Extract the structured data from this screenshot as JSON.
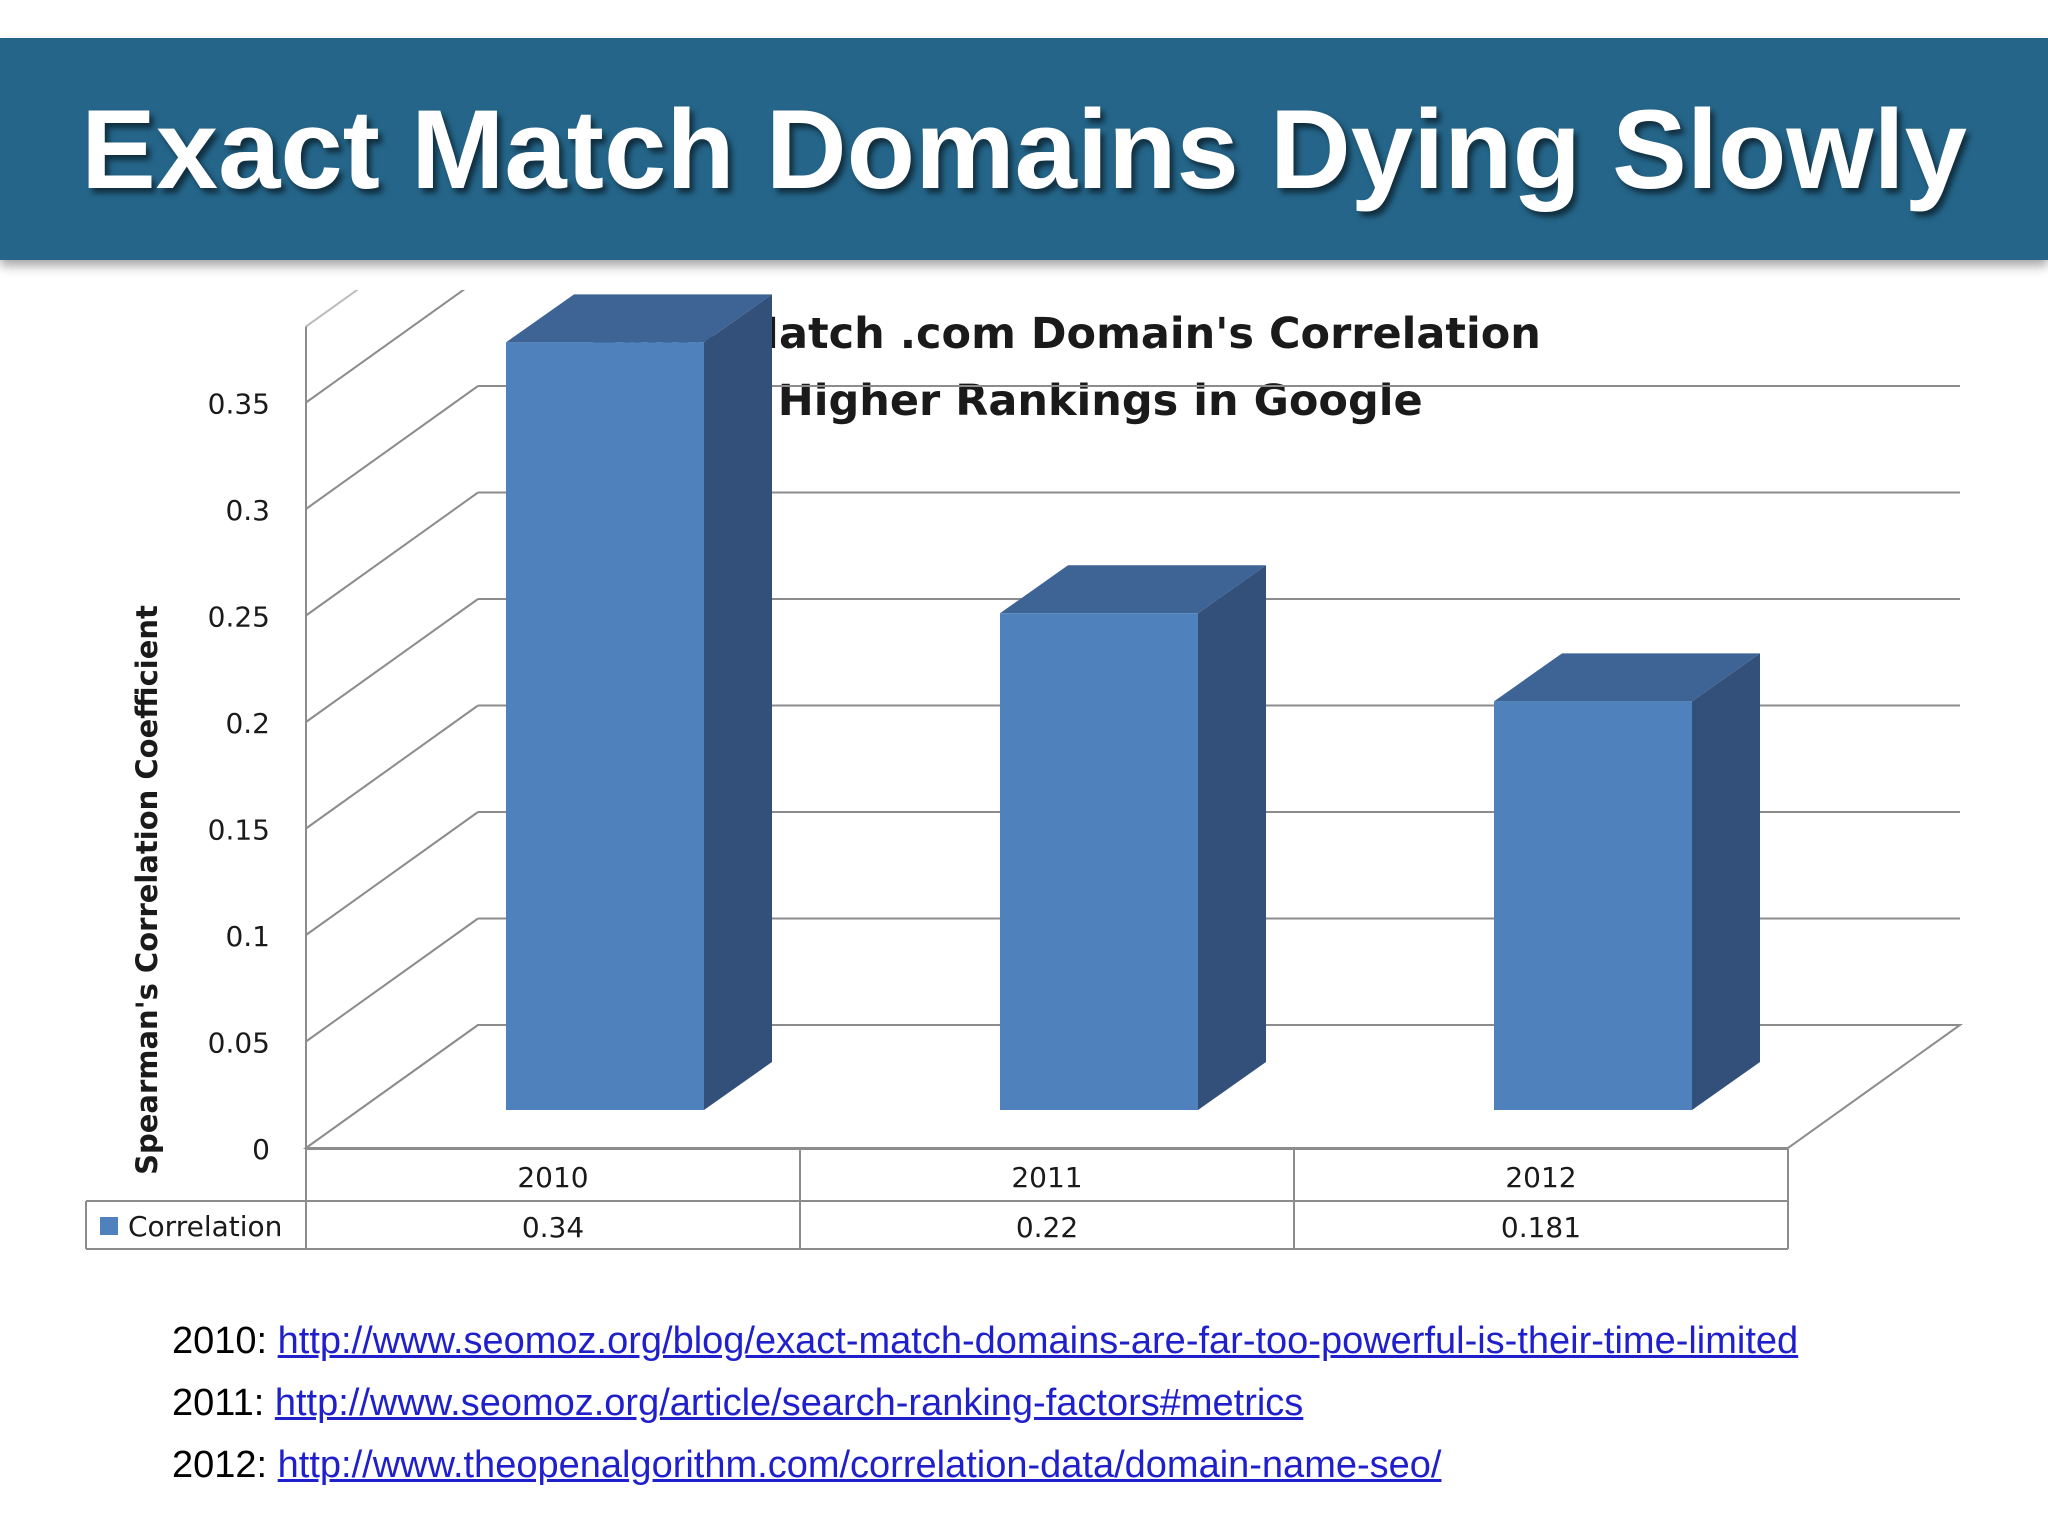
{
  "slide": {
    "title": "Exact Match Domains Dying Slowly",
    "banner_color": "#246589"
  },
  "chart_data": {
    "type": "bar",
    "style": "3d-column-with-data-table",
    "title_line1": "Exact Match .com Domain's Correlation",
    "title_line2": "w/ Higher Rankings in Google",
    "ylabel": "Spearman's Correlation Coefficient",
    "xlabel": "",
    "categories": [
      "2010",
      "2011",
      "2012"
    ],
    "series": [
      {
        "name": "Correlation",
        "values": [
          0.34,
          0.22,
          0.181
        ],
        "labels": [
          "0.34",
          "0.22",
          "0.181"
        ],
        "color": "#4f81bd"
      }
    ],
    "ylim": [
      0,
      0.35
    ],
    "yticks": [
      "0",
      "0.05",
      "0.1",
      "0.15",
      "0.2",
      "0.25",
      "0.3",
      "0.35"
    ],
    "grid": true,
    "legend": "data-table-left"
  },
  "sources": [
    {
      "prefix": "2010:",
      "url": "http://www.seomoz.org/blog/exact-match-domains-are-far-too-powerful-is-their-time-limited"
    },
    {
      "prefix": "2011:",
      "url": "http://www.seomoz.org/article/search-ranking-factors#metrics"
    },
    {
      "prefix": "2012:",
      "url": "http://www.theopenalgorithm.com/correlation-data/domain-name-seo/"
    }
  ]
}
